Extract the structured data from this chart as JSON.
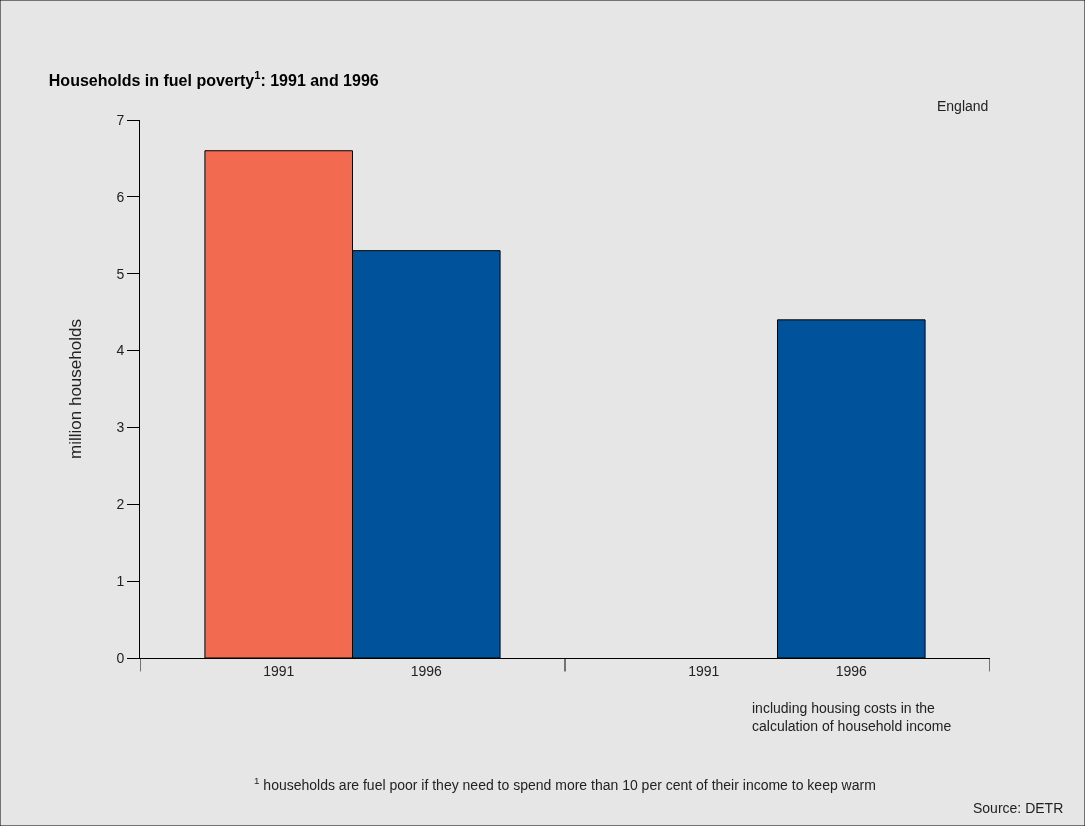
{
  "chart_data": {
    "type": "bar",
    "title": "Households in fuel poverty$^{1}$: 1991 and 1996",
    "ylabel": "million households",
    "categories": [
      "1991",
      "1996",
      "1991",
      "1996"
    ],
    "values": [
      6.6,
      5.3,
      null,
      4.4
    ],
    "colors": [
      "#f26b50",
      "#00539b",
      "#f26b50",
      "#00539b"
    ],
    "ylim": [
      0,
      7
    ],
    "yticks": [
      0,
      1,
      2,
      3,
      4,
      5,
      6,
      7
    ],
    "grid": false,
    "legend": false,
    "annotations": [
      "England",
      "including housing costs in the\ncalculation of household income",
      "$^{1}$ households are fuel poor if they need to spend more than 10 per cent of their income to keep warm",
      "Source: DETR"
    ]
  }
}
